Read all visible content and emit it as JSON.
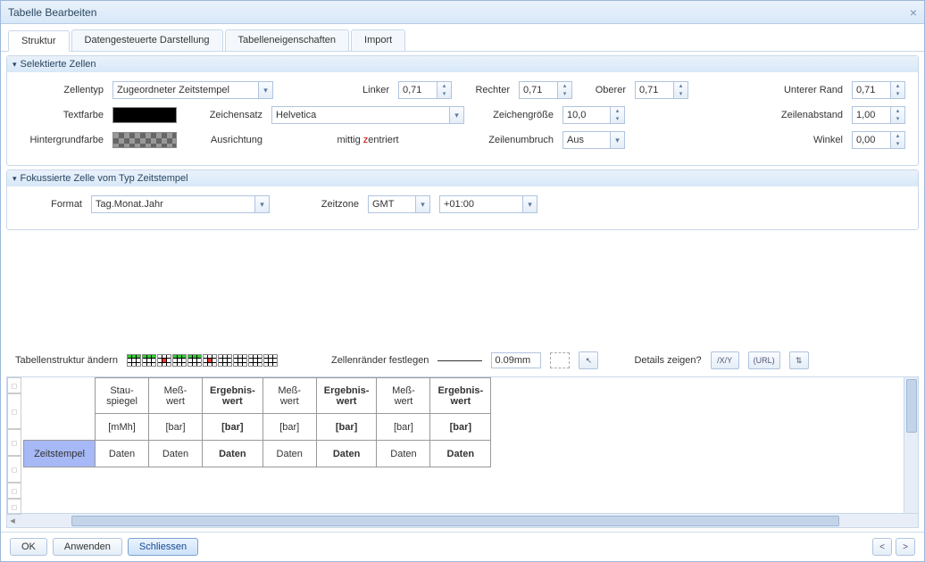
{
  "dialog": {
    "title": "Tabelle Bearbeiten"
  },
  "tabs": {
    "struktur": "Struktur",
    "daten": "Datengesteuerte Darstellung",
    "eigen": "Tabelleneigenschaften",
    "import": "Import"
  },
  "section1": {
    "title": "Selektierte Zellen"
  },
  "section2": {
    "title": "Fokussierte Zelle vom Typ Zeitstempel"
  },
  "labels": {
    "zellentyp": "Zellentyp",
    "linker": "Linker",
    "rechter": "Rechter",
    "oberer": "Oberer",
    "unterer": "Unterer Rand",
    "textfarbe": "Textfarbe",
    "zeichensatz": "Zeichensatz",
    "zeichengroesse": "Zeichengröße",
    "zeilenabstand": "Zeilenabstand",
    "hintergrundfarbe": "Hintergrundfarbe",
    "ausrichtung": "Ausrichtung",
    "ausrichtung_val": "mittig zentriert",
    "zeilenumbruch": "Zeilenumbruch",
    "winkel": "Winkel",
    "format": "Format",
    "zeitzone": "Zeitzone",
    "tabellenstruktur": "Tabellenstruktur ändern",
    "zellenraender": "Zellenränder festlegen",
    "details": "Details zeigen?"
  },
  "values": {
    "zellentyp": "Zugeordneter Zeitstempel",
    "linker": "0,71",
    "rechter": "0,71",
    "oberer": "0,71",
    "unterer": "0,71",
    "zeichensatz": "Helvetica",
    "zeichengroesse": "10,0",
    "zeilenabstand": "1,00",
    "zeilenumbruch": "Aus",
    "winkel": "0,00",
    "format": "Tag.Monat.Jahr",
    "zeitzone_tz": "GMT",
    "zeitzone_off": "+01:00",
    "border_size": "0.09mm"
  },
  "colors": {
    "textfarbe": "#000000",
    "accent": "#a6b8f5",
    "header_grad_top": "#eaf2fb",
    "header_grad_bot": "#d8e8f8",
    "border": "#c8d8e8"
  },
  "detail_buttons": {
    "xy": "/X/Y",
    "url": "(URL)"
  },
  "buttons": {
    "ok": "OK",
    "anwenden": "Anwenden",
    "schliessen": "Schliessen",
    "prev": "<",
    "next": ">"
  },
  "preview": {
    "headers_row1": [
      "",
      "Stau-\nspiegel",
      "Meß-\nwert",
      "Ergebnis-\nwert",
      "Meß-\nwert",
      "Ergebnis-\nwert",
      "Meß-\nwert",
      "Ergebnis-\nwert"
    ],
    "headers_row2": [
      "",
      "[mMh]",
      "[bar]",
      "[bar]",
      "[bar]",
      "[bar]",
      "[bar]",
      "[bar]"
    ],
    "data_row": [
      "Zeitstempel",
      "Daten",
      "Daten",
      "Daten",
      "Daten",
      "Daten",
      "Daten",
      "Daten"
    ],
    "bold_cols": [
      3,
      5,
      7
    ],
    "selected_cell": {
      "row": 2,
      "col": 0
    }
  }
}
